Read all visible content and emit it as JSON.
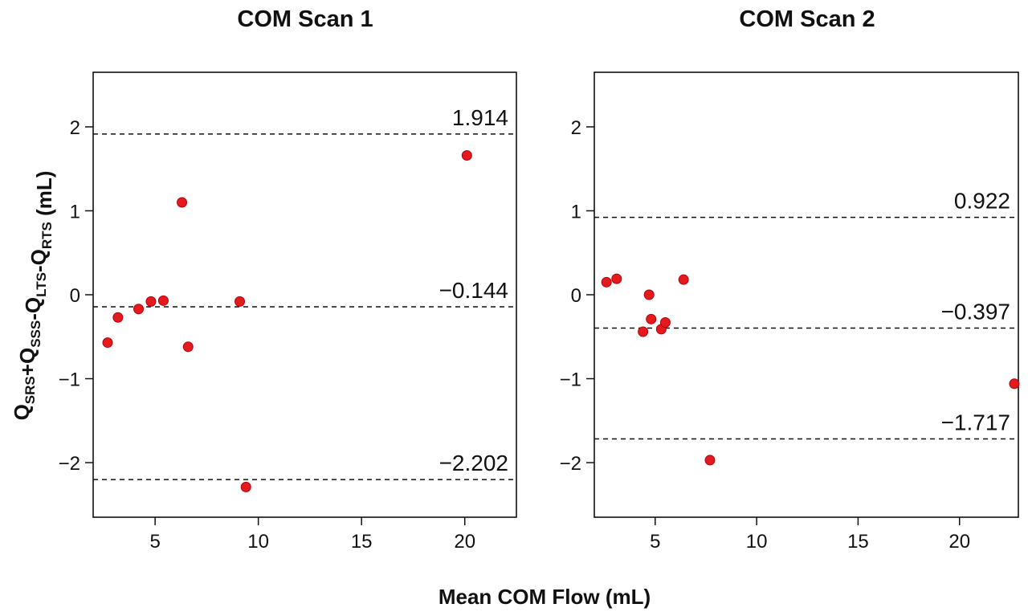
{
  "chart_data": [
    {
      "type": "scatter",
      "title": "COM Scan 1",
      "xlim": [
        2,
        22.5
      ],
      "ylim": [
        -2.65,
        2.65
      ],
      "xticks": [
        5,
        10,
        15,
        20
      ],
      "yticks": [
        -2,
        -1,
        0,
        1,
        2
      ],
      "grid": false,
      "point_color": "#e41a1c",
      "reference_lines": [
        {
          "value": 1.914,
          "label": "1.914"
        },
        {
          "value": -0.144,
          "label": "−0.144"
        },
        {
          "value": -2.202,
          "label": "−2.202"
        }
      ],
      "points": [
        {
          "x": 2.7,
          "y": -0.57
        },
        {
          "x": 3.2,
          "y": -0.27
        },
        {
          "x": 4.2,
          "y": -0.17
        },
        {
          "x": 4.8,
          "y": -0.08
        },
        {
          "x": 5.4,
          "y": -0.07
        },
        {
          "x": 6.3,
          "y": 1.1
        },
        {
          "x": 6.6,
          "y": -0.62
        },
        {
          "x": 9.1,
          "y": -0.08
        },
        {
          "x": 9.4,
          "y": -2.29
        },
        {
          "x": 20.1,
          "y": 1.66
        }
      ]
    },
    {
      "type": "scatter",
      "title": "COM Scan 2",
      "xlim": [
        2,
        22.9
      ],
      "ylim": [
        -2.65,
        2.65
      ],
      "xticks": [
        5,
        10,
        15,
        20
      ],
      "yticks": [
        -2,
        -1,
        0,
        1,
        2
      ],
      "grid": false,
      "point_color": "#e41a1c",
      "reference_lines": [
        {
          "value": 0.922,
          "label": "0.922"
        },
        {
          "value": -0.397,
          "label": "−0.397"
        },
        {
          "value": -1.717,
          "label": "−1.717"
        }
      ],
      "points": [
        {
          "x": 2.6,
          "y": 0.15
        },
        {
          "x": 3.1,
          "y": 0.19
        },
        {
          "x": 4.4,
          "y": -0.44
        },
        {
          "x": 4.7,
          "y": 0.0
        },
        {
          "x": 4.8,
          "y": -0.29
        },
        {
          "x": 5.3,
          "y": -0.41
        },
        {
          "x": 5.5,
          "y": -0.33
        },
        {
          "x": 6.4,
          "y": 0.18
        },
        {
          "x": 7.7,
          "y": -1.97
        },
        {
          "x": 22.7,
          "y": -1.06
        }
      ]
    }
  ],
  "x_axis_title": "Mean COM Flow (mL)",
  "y_axis_title": {
    "parts": [
      {
        "text": "Q",
        "sub": "SRS"
      },
      {
        "text": "+Q",
        "sub": "SSS"
      },
      {
        "text": "-Q",
        "sub": "LTS"
      },
      {
        "text": "-Q",
        "sub": "RTS"
      },
      {
        "text": " (mL)",
        "sub": ""
      }
    ]
  }
}
